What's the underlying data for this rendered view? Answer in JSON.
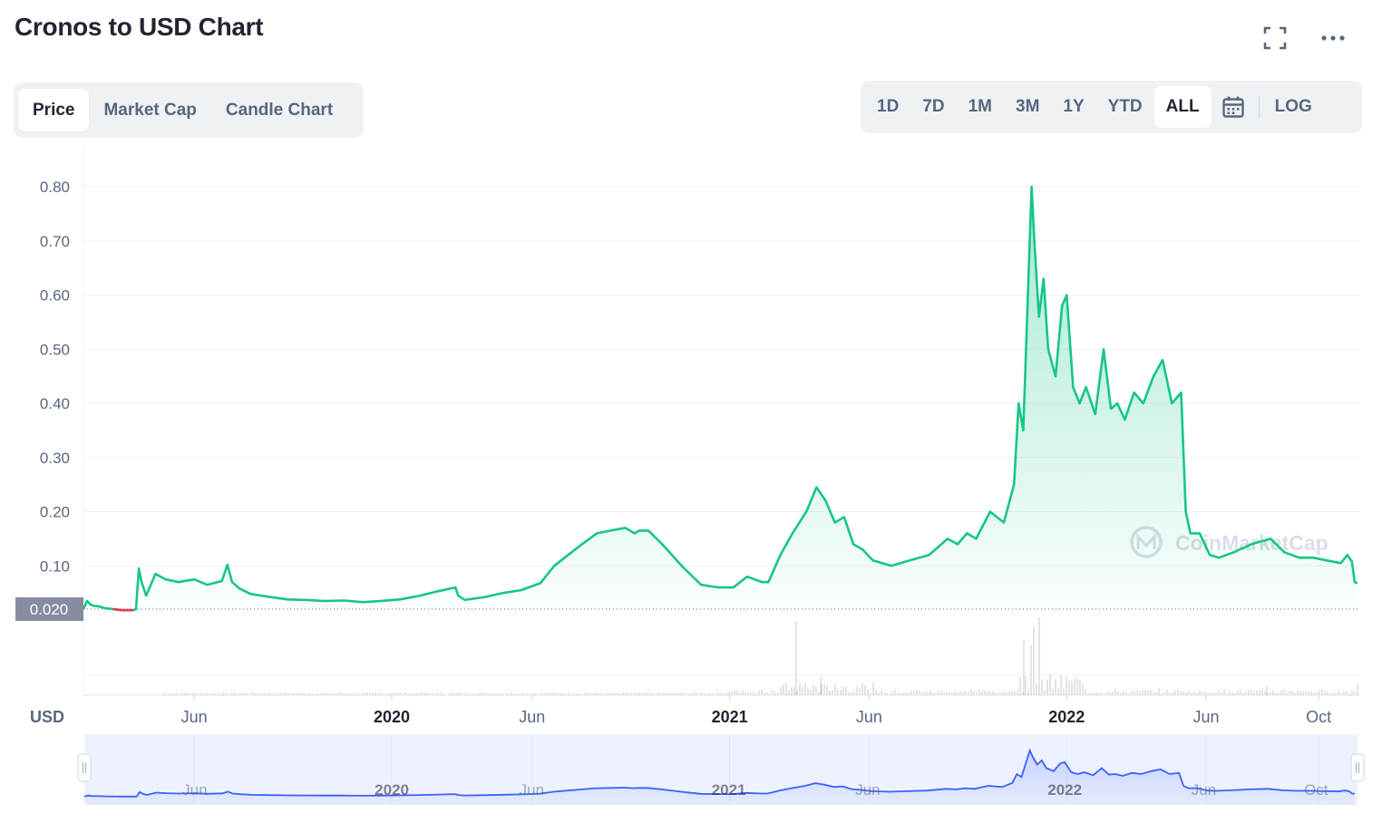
{
  "header": {
    "title": "Cronos to USD Chart"
  },
  "icons": {
    "fullscreen": "fullscreen-icon",
    "more": "more-icon",
    "calendar": "calendar-icon"
  },
  "tabs": [
    {
      "label": "Price",
      "active": true
    },
    {
      "label": "Market Cap",
      "active": false
    },
    {
      "label": "Candle Chart",
      "active": false
    }
  ],
  "ranges": [
    {
      "label": "1D",
      "active": false
    },
    {
      "label": "7D",
      "active": false
    },
    {
      "label": "1M",
      "active": false
    },
    {
      "label": "3M",
      "active": false
    },
    {
      "label": "1Y",
      "active": false
    },
    {
      "label": "YTD",
      "active": false
    },
    {
      "label": "ALL",
      "active": true
    }
  ],
  "log_label": "LOG",
  "watermark": "CoinMarketCap",
  "colors": {
    "line": "#16c784",
    "line_down": "#ea3943",
    "navigator": "#3861fb",
    "text": "#222531",
    "muted": "#58667e"
  },
  "chart_data": {
    "type": "area",
    "title": "Cronos to USD Chart",
    "currency_label": "USD",
    "ylim": [
      0,
      0.82
    ],
    "y_ticks": [
      0.1,
      0.2,
      0.3,
      0.4,
      0.5,
      0.6,
      0.7,
      0.8
    ],
    "y_tick_labels": [
      "0.10",
      "0.20",
      "0.30",
      "0.40",
      "0.50",
      "0.60",
      "0.70",
      "0.80"
    ],
    "current_price_label": "0.020",
    "current_price": 0.02,
    "x_range": [
      "2019-02-01",
      "2022-11-15"
    ],
    "x_ticks": [
      {
        "date": "2019-06-01",
        "label": "Jun",
        "bold": false
      },
      {
        "date": "2020-01-01",
        "label": "2020",
        "bold": true
      },
      {
        "date": "2020-06-01",
        "label": "Jun",
        "bold": false
      },
      {
        "date": "2021-01-01",
        "label": "2021",
        "bold": true
      },
      {
        "date": "2021-06-01",
        "label": "Jun",
        "bold": false
      },
      {
        "date": "2022-01-01",
        "label": "2022",
        "bold": true
      },
      {
        "date": "2022-06-01",
        "label": "Jun",
        "bold": false
      },
      {
        "date": "2022-10-01",
        "label": "Oct",
        "bold": false
      }
    ],
    "grid": true,
    "series": [
      {
        "x": [
          "2019-02-01",
          "2019-02-05",
          "2019-02-09",
          "2019-02-13",
          "2019-02-18",
          "2019-02-24",
          "2019-03-05",
          "2019-03-15",
          "2019-03-22",
          "2019-03-27",
          "2019-03-30",
          "2019-04-02",
          "2019-04-05",
          "2019-04-10",
          "2019-04-20",
          "2019-05-01",
          "2019-05-15",
          "2019-06-01",
          "2019-06-15",
          "2019-07-01",
          "2019-07-07",
          "2019-07-12",
          "2019-07-20",
          "2019-08-01",
          "2019-08-20",
          "2019-09-10",
          "2019-10-01",
          "2019-10-20",
          "2019-11-10",
          "2019-12-01",
          "2019-12-20",
          "2020-01-10",
          "2020-02-01",
          "2020-02-20",
          "2020-03-10",
          "2020-03-13",
          "2020-03-20",
          "2020-04-10",
          "2020-05-01",
          "2020-05-20",
          "2020-06-10",
          "2020-06-25",
          "2020-07-10",
          "2020-07-25",
          "2020-08-10",
          "2020-08-25",
          "2020-09-10",
          "2020-09-20",
          "2020-09-25",
          "2020-10-05",
          "2020-10-20",
          "2020-11-10",
          "2020-12-01",
          "2020-12-20",
          "2021-01-05",
          "2021-01-20",
          "2021-02-05",
          "2021-02-12",
          "2021-02-25",
          "2021-03-10",
          "2021-03-25",
          "2021-04-05",
          "2021-04-15",
          "2021-04-25",
          "2021-05-05",
          "2021-05-15",
          "2021-05-25",
          "2021-06-05",
          "2021-06-25",
          "2021-07-15",
          "2021-08-05",
          "2021-08-25",
          "2021-09-05",
          "2021-09-15",
          "2021-09-25",
          "2021-10-10",
          "2021-10-25",
          "2021-11-05",
          "2021-11-10",
          "2021-11-15",
          "2021-11-20",
          "2021-11-24",
          "2021-11-27",
          "2021-12-02",
          "2021-12-07",
          "2021-12-12",
          "2021-12-20",
          "2021-12-27",
          "2022-01-01",
          "2022-01-08",
          "2022-01-15",
          "2022-01-22",
          "2022-02-01",
          "2022-02-10",
          "2022-02-18",
          "2022-02-25",
          "2022-03-05",
          "2022-03-15",
          "2022-03-25",
          "2022-04-05",
          "2022-04-15",
          "2022-04-25",
          "2022-05-05",
          "2022-05-10",
          "2022-05-15",
          "2022-05-25",
          "2022-06-05",
          "2022-06-15",
          "2022-07-01",
          "2022-07-20",
          "2022-08-10",
          "2022-08-25",
          "2022-09-10",
          "2022-09-25",
          "2022-10-10",
          "2022-10-25",
          "2022-11-01",
          "2022-11-06",
          "2022-11-09",
          "2022-11-12"
        ],
        "y": [
          0.02,
          0.035,
          0.028,
          0.026,
          0.025,
          0.022,
          0.02,
          0.018,
          0.018,
          0.018,
          0.02,
          0.095,
          0.07,
          0.045,
          0.085,
          0.075,
          0.07,
          0.075,
          0.065,
          0.072,
          0.102,
          0.07,
          0.058,
          0.048,
          0.043,
          0.038,
          0.037,
          0.035,
          0.036,
          0.033,
          0.035,
          0.038,
          0.045,
          0.053,
          0.06,
          0.045,
          0.037,
          0.042,
          0.05,
          0.055,
          0.068,
          0.1,
          0.12,
          0.14,
          0.16,
          0.165,
          0.17,
          0.16,
          0.165,
          0.165,
          0.14,
          0.1,
          0.065,
          0.06,
          0.06,
          0.08,
          0.07,
          0.07,
          0.12,
          0.16,
          0.2,
          0.245,
          0.22,
          0.18,
          0.19,
          0.14,
          0.13,
          0.11,
          0.1,
          0.11,
          0.12,
          0.15,
          0.14,
          0.16,
          0.15,
          0.2,
          0.18,
          0.25,
          0.4,
          0.35,
          0.6,
          0.8,
          0.7,
          0.56,
          0.63,
          0.5,
          0.45,
          0.58,
          0.6,
          0.43,
          0.4,
          0.43,
          0.38,
          0.5,
          0.39,
          0.4,
          0.37,
          0.42,
          0.4,
          0.45,
          0.48,
          0.4,
          0.42,
          0.2,
          0.16,
          0.16,
          0.12,
          0.115,
          0.125,
          0.14,
          0.15,
          0.125,
          0.115,
          0.115,
          0.11,
          0.105,
          0.12,
          0.108,
          0.07,
          0.068
        ]
      }
    ]
  }
}
